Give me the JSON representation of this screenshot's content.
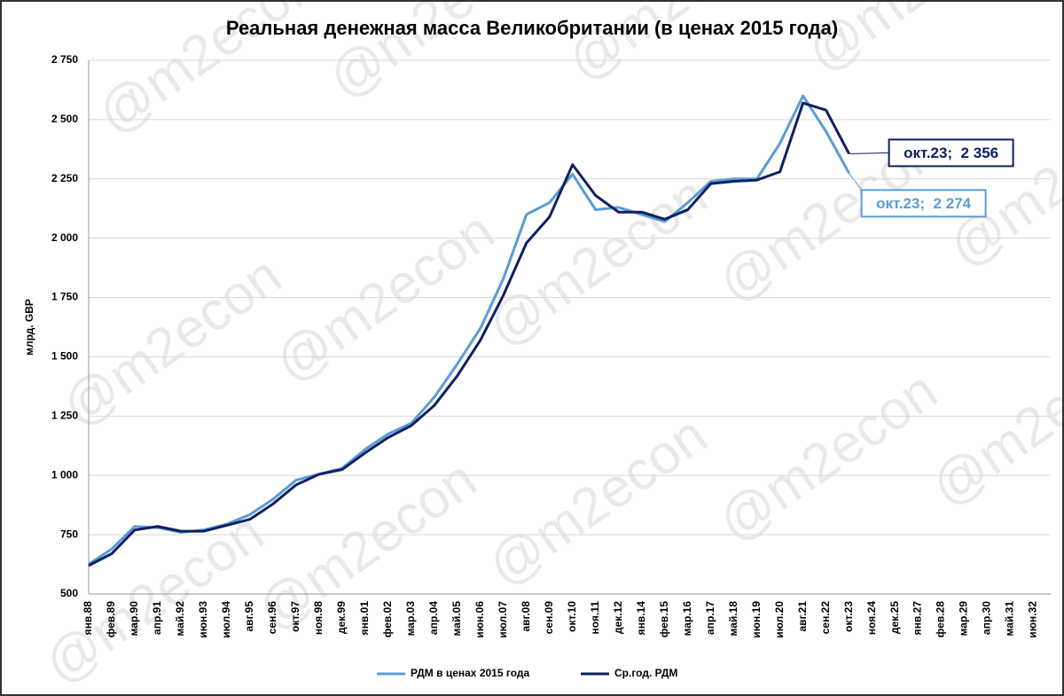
{
  "chart_data": {
    "type": "line",
    "title": "Реальная денежная масса Великобритании (в ценах 2015 года)",
    "y_label": "млрд. GBP",
    "watermark": "@m2econ",
    "categories": [
      "янв.88",
      "фев.89",
      "мар.90",
      "апр.91",
      "май.92",
      "июн.93",
      "июл.94",
      "авг.95",
      "сен.96",
      "окт.97",
      "ноя.98",
      "дек.99",
      "янв.01",
      "фев.02",
      "мар.03",
      "апр.04",
      "май.05",
      "июн.06",
      "июл.07",
      "авг.08",
      "сен.09",
      "окт.10",
      "ноя.11",
      "дек.12",
      "янв.14",
      "фев.15",
      "мар.16",
      "апр.17",
      "май.18",
      "июн.19",
      "июл.20",
      "авг.21",
      "сен.22",
      "окт.23",
      "ноя.24",
      "дек.25",
      "янв.27",
      "фев.28",
      "мар.29",
      "апр.30",
      "май.31",
      "июн.32"
    ],
    "series": [
      {
        "name": "РДМ в ценах 2015 года",
        "color": "#5b9bd5",
        "values": [
          625,
          690,
          785,
          780,
          760,
          770,
          795,
          835,
          900,
          980,
          1005,
          1030,
          1110,
          1175,
          1220,
          1330,
          1470,
          1620,
          1830,
          2100,
          2150,
          2270,
          2120,
          2130,
          2100,
          2070,
          2150,
          2240,
          2250,
          2250,
          2400,
          2600,
          2450,
          2274,
          null,
          null,
          null,
          null,
          null,
          null,
          null,
          null
        ],
        "value_labels": [
          null,
          null,
          null,
          null,
          null,
          null,
          null,
          null,
          null,
          null,
          null,
          null,
          null,
          null,
          null,
          null,
          null,
          null,
          null,
          null,
          null,
          null,
          null,
          null,
          null,
          null,
          null,
          null,
          null,
          null,
          null,
          null,
          null,
          "окт.23;  2 274",
          null,
          null,
          null,
          null,
          null,
          null,
          null,
          null
        ]
      },
      {
        "name": "Ср.год. РДМ",
        "color": "#0d2060",
        "values": [
          620,
          670,
          770,
          785,
          765,
          765,
          790,
          815,
          880,
          960,
          1005,
          1025,
          1095,
          1160,
          1210,
          1295,
          1420,
          1570,
          1760,
          1980,
          2090,
          2310,
          2180,
          2110,
          2110,
          2080,
          2120,
          2230,
          2240,
          2245,
          2280,
          2570,
          2540,
          2356,
          null,
          null,
          null,
          null,
          null,
          null,
          null,
          null
        ],
        "value_labels": [
          null,
          null,
          null,
          null,
          null,
          null,
          null,
          null,
          null,
          null,
          null,
          null,
          null,
          null,
          null,
          null,
          null,
          null,
          null,
          null,
          null,
          null,
          null,
          null,
          null,
          null,
          null,
          null,
          null,
          null,
          null,
          null,
          null,
          "окт.23;  2 356",
          null,
          null,
          null,
          null,
          null,
          null,
          null,
          null
        ]
      }
    ],
    "ylim": [
      500,
      2750
    ],
    "yticks": [
      500,
      750,
      {
        "value": 1000,
        "label": "1 000"
      },
      {
        "value": 1250,
        "label": "1 250"
      },
      {
        "value": 1500,
        "label": "1 500"
      },
      {
        "value": 1750,
        "label": "1 750"
      },
      {
        "value": 2000,
        "label": "2 000"
      },
      {
        "value": 2250,
        "label": "2 250"
      },
      {
        "value": 2500,
        "label": "2 500"
      },
      {
        "value": 2750,
        "label": "2 750"
      }
    ],
    "grid": true,
    "legend": "bottom"
  }
}
